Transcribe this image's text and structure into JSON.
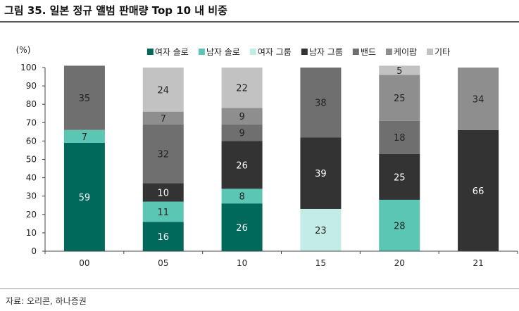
{
  "figure": {
    "title": "그림 35. 일본 정규 앨범 판매량 Top 10 내 비중",
    "source": "자료: 오리콘, 하나증권"
  },
  "chart_data": {
    "type": "bar",
    "stacked": true,
    "ylabel": "(%)",
    "ylim": [
      0,
      100
    ],
    "yticks": [
      0,
      10,
      20,
      30,
      40,
      50,
      60,
      70,
      80,
      90,
      100
    ],
    "categories": [
      "00",
      "05",
      "10",
      "15",
      "20",
      "21"
    ],
    "legend_position": "top",
    "series": [
      {
        "name": "여자 솔로",
        "color": "#00695c",
        "label_color": "#ffffff",
        "values": [
          59,
          16,
          26,
          0,
          0,
          0
        ]
      },
      {
        "name": "남자 솔로",
        "color": "#5cc6b4",
        "label_color": "#222222",
        "values": [
          7,
          11,
          8,
          0,
          28,
          0
        ]
      },
      {
        "name": "여자 그룹",
        "color": "#c4ece6",
        "label_color": "#222222",
        "values": [
          0,
          0,
          0,
          23,
          0,
          0
        ]
      },
      {
        "name": "남자 그룹",
        "color": "#333333",
        "label_color": "#ffffff",
        "values": [
          0,
          10,
          26,
          39,
          25,
          66
        ]
      },
      {
        "name": "밴드",
        "color": "#6f6f6f",
        "label_color": "#222222",
        "values": [
          35,
          32,
          9,
          38,
          18,
          0
        ]
      },
      {
        "name": "케이팝",
        "color": "#8e8e8e",
        "label_color": "#222222",
        "values": [
          0,
          7,
          9,
          0,
          25,
          34
        ]
      },
      {
        "name": "기타",
        "color": "#c2c2c2",
        "label_color": "#222222",
        "values": [
          0,
          24,
          22,
          0,
          5,
          0
        ]
      }
    ]
  }
}
